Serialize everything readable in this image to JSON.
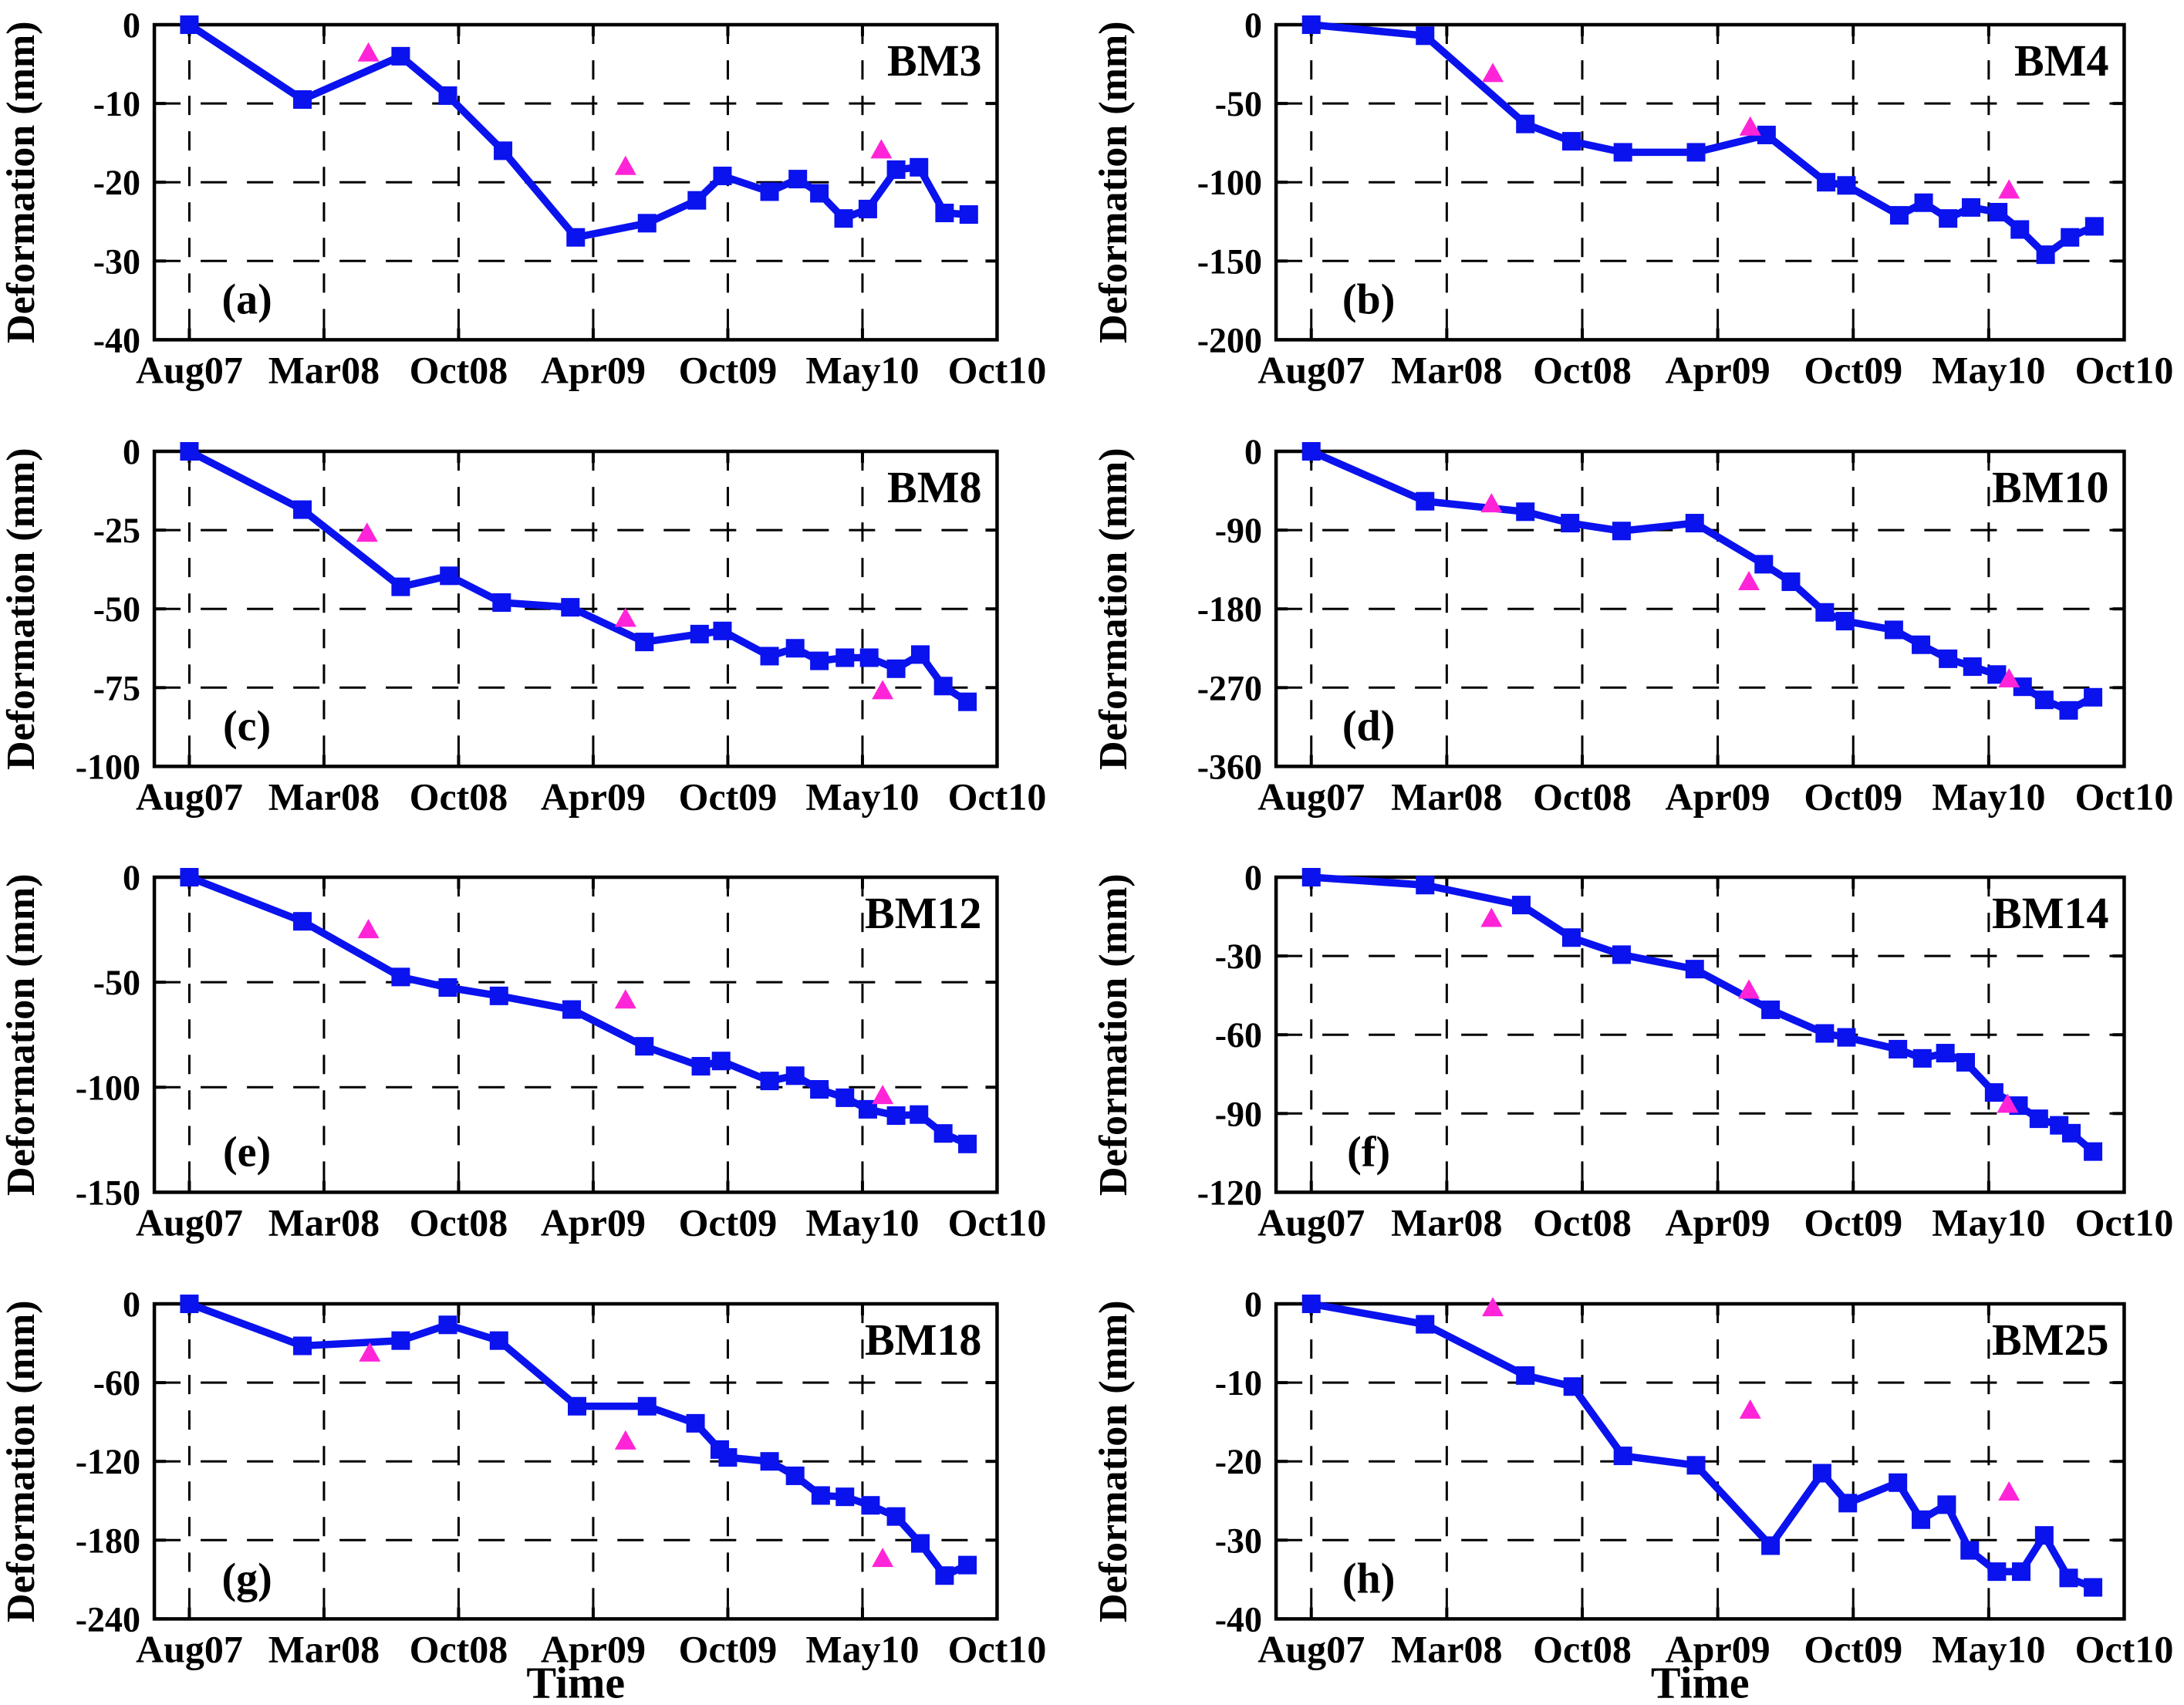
{
  "figure": {
    "y_axis_label": "Deformation (mm)",
    "x_axis_label": "Time",
    "x_tick_labels": [
      "Aug07",
      "Mar08",
      "Oct08",
      "Apr09",
      "Oct09",
      "May10",
      "Oct10"
    ],
    "x_axis_note": "x values of data points are in x-tick units: 0=Aug07, 1=Mar08, 2=Oct08, 3=Apr09, 4=Oct09, 5=May10, 6=Oct10",
    "grid": "dashed black grid at every x tick and interior y tick",
    "colors": {
      "line": "#0A12EE",
      "square_marker": "#0A12EE",
      "triangle_marker": "#FF24D8",
      "grid": "#000000",
      "text": "#000000",
      "background": "#FFFFFF"
    }
  },
  "chart_data": [
    {
      "type": "line",
      "panel_letter": "(a)",
      "station": "BM3",
      "ylim": [
        -40,
        0
      ],
      "yticks": [
        0,
        -10,
        -20,
        -30,
        -40
      ],
      "show_x_axis_label": false,
      "line_points": [
        [
          0,
          0
        ],
        [
          0.84,
          -9.5
        ],
        [
          1.57,
          -4
        ],
        [
          1.92,
          -9
        ],
        [
          2.33,
          -16
        ],
        [
          2.87,
          -27
        ],
        [
          3.4,
          -25.2
        ],
        [
          3.77,
          -22.3
        ],
        [
          3.96,
          -19.2
        ],
        [
          4.31,
          -21.2
        ],
        [
          4.52,
          -19.6
        ],
        [
          4.68,
          -21.4
        ],
        [
          4.86,
          -24.6
        ],
        [
          5.04,
          -23.4
        ],
        [
          5.25,
          -18.4
        ],
        [
          5.42,
          -18.1
        ],
        [
          5.61,
          -23.9
        ],
        [
          5.79,
          -24.1
        ]
      ],
      "triangle_points": [
        [
          1.33,
          -3.6
        ],
        [
          3.24,
          -18
        ],
        [
          5.14,
          -15.9
        ]
      ]
    },
    {
      "type": "line",
      "panel_letter": "(b)",
      "station": "BM4",
      "ylim": [
        -200,
        0
      ],
      "yticks": [
        0,
        -50,
        -100,
        -150,
        -200
      ],
      "show_x_axis_label": false,
      "line_points": [
        [
          0,
          0
        ],
        [
          0.84,
          -7
        ],
        [
          1.58,
          -63
        ],
        [
          1.92,
          -74
        ],
        [
          2.3,
          -81
        ],
        [
          2.84,
          -81
        ],
        [
          3.36,
          -70
        ],
        [
          3.8,
          -100
        ],
        [
          3.95,
          -102
        ],
        [
          4.34,
          -121
        ],
        [
          4.52,
          -113
        ],
        [
          4.7,
          -123
        ],
        [
          4.87,
          -116
        ],
        [
          5.07,
          -119
        ],
        [
          5.23,
          -130
        ],
        [
          5.42,
          -146
        ],
        [
          5.6,
          -135
        ],
        [
          5.78,
          -128
        ]
      ],
      "triangle_points": [
        [
          1.34,
          -31
        ],
        [
          3.24,
          -65
        ],
        [
          5.15,
          -105
        ]
      ]
    },
    {
      "type": "line",
      "panel_letter": "(c)",
      "station": "BM8",
      "ylim": [
        -100,
        0
      ],
      "yticks": [
        0,
        -25,
        -50,
        -75,
        -100
      ],
      "show_x_axis_label": false,
      "line_points": [
        [
          0,
          0
        ],
        [
          0.84,
          -18.5
        ],
        [
          1.57,
          -43
        ],
        [
          1.93,
          -39.5
        ],
        [
          2.32,
          -48
        ],
        [
          2.83,
          -49.5
        ],
        [
          3.38,
          -60.5
        ],
        [
          3.79,
          -58
        ],
        [
          3.96,
          -57
        ],
        [
          4.31,
          -65
        ],
        [
          4.5,
          -62.5
        ],
        [
          4.68,
          -66.5
        ],
        [
          4.87,
          -65.5
        ],
        [
          5.05,
          -65.5
        ],
        [
          5.25,
          -69
        ],
        [
          5.43,
          -64.5
        ],
        [
          5.6,
          -74.5
        ],
        [
          5.78,
          -79.5
        ]
      ],
      "triangle_points": [
        [
          1.32,
          -26
        ],
        [
          3.24,
          -53
        ],
        [
          5.15,
          -76
        ]
      ]
    },
    {
      "type": "line",
      "panel_letter": "(d)",
      "station": "BM10",
      "ylim": [
        -360,
        0
      ],
      "yticks": [
        0,
        -90,
        -180,
        -270,
        -360
      ],
      "show_x_axis_label": false,
      "line_points": [
        [
          0,
          0
        ],
        [
          0.84,
          -57
        ],
        [
          1.58,
          -69
        ],
        [
          1.91,
          -82
        ],
        [
          2.29,
          -91
        ],
        [
          2.83,
          -82
        ],
        [
          3.34,
          -129
        ],
        [
          3.54,
          -149
        ],
        [
          3.79,
          -184
        ],
        [
          3.94,
          -194
        ],
        [
          4.3,
          -204
        ],
        [
          4.5,
          -221
        ],
        [
          4.7,
          -237
        ],
        [
          4.88,
          -246
        ],
        [
          5.06,
          -255
        ],
        [
          5.25,
          -269
        ],
        [
          5.41,
          -284
        ],
        [
          5.59,
          -296
        ],
        [
          5.77,
          -281
        ]
      ],
      "triangle_points": [
        [
          1.33,
          -60
        ],
        [
          3.23,
          -149
        ],
        [
          5.15,
          -260
        ]
      ]
    },
    {
      "type": "line",
      "panel_letter": "(e)",
      "station": "BM12",
      "ylim": [
        -150,
        0
      ],
      "yticks": [
        0,
        -50,
        -100,
        -150
      ],
      "show_x_axis_label": false,
      "line_points": [
        [
          0,
          0
        ],
        [
          0.84,
          -21
        ],
        [
          1.57,
          -47.5
        ],
        [
          1.92,
          -52.5
        ],
        [
          2.3,
          -56.5
        ],
        [
          2.84,
          -63
        ],
        [
          3.38,
          -80.5
        ],
        [
          3.8,
          -90
        ],
        [
          3.95,
          -87.5
        ],
        [
          4.31,
          -97
        ],
        [
          4.5,
          -94.5
        ],
        [
          4.68,
          -101
        ],
        [
          4.87,
          -105
        ],
        [
          5.04,
          -110.5
        ],
        [
          5.25,
          -113.5
        ],
        [
          5.42,
          -113
        ],
        [
          5.6,
          -122
        ],
        [
          5.78,
          -127
        ]
      ],
      "triangle_points": [
        [
          1.33,
          -25
        ],
        [
          3.24,
          -58.5
        ],
        [
          5.15,
          -104
        ]
      ]
    },
    {
      "type": "line",
      "panel_letter": "(f)",
      "station": "BM14",
      "ylim": [
        -120,
        0
      ],
      "yticks": [
        0,
        -30,
        -60,
        -90,
        -120
      ],
      "show_x_axis_label": false,
      "line_points": [
        [
          0,
          0
        ],
        [
          0.84,
          -3
        ],
        [
          1.55,
          -10.6
        ],
        [
          1.92,
          -23
        ],
        [
          2.29,
          -29.5
        ],
        [
          2.83,
          -35
        ],
        [
          3.39,
          -50.5
        ],
        [
          3.79,
          -59.5
        ],
        [
          3.95,
          -61
        ],
        [
          4.33,
          -65.5
        ],
        [
          4.51,
          -69
        ],
        [
          4.68,
          -67
        ],
        [
          4.83,
          -70.5
        ],
        [
          5.04,
          -82
        ],
        [
          5.22,
          -87
        ],
        [
          5.37,
          -92
        ],
        [
          5.52,
          -94.5
        ],
        [
          5.61,
          -97.5
        ],
        [
          5.77,
          -104.5
        ]
      ],
      "triangle_points": [
        [
          1.33,
          -15.7
        ],
        [
          3.23,
          -43
        ],
        [
          5.14,
          -86.5
        ]
      ]
    },
    {
      "type": "line",
      "panel_letter": "(g)",
      "station": "BM18",
      "ylim": [
        -240,
        0
      ],
      "yticks": [
        0,
        -60,
        -120,
        -180,
        -240
      ],
      "show_x_axis_label": true,
      "line_points": [
        [
          0,
          0
        ],
        [
          0.84,
          -32
        ],
        [
          1.57,
          -28
        ],
        [
          1.92,
          -16
        ],
        [
          2.3,
          -28
        ],
        [
          2.88,
          -78
        ],
        [
          3.4,
          -78
        ],
        [
          3.76,
          -91
        ],
        [
          3.94,
          -111
        ],
        [
          4.0,
          -117
        ],
        [
          4.31,
          -120
        ],
        [
          4.5,
          -131
        ],
        [
          4.69,
          -146
        ],
        [
          4.87,
          -147
        ],
        [
          5.06,
          -153.5
        ],
        [
          5.25,
          -162
        ],
        [
          5.43,
          -182.5
        ],
        [
          5.61,
          -207
        ],
        [
          5.78,
          -199
        ]
      ],
      "triangle_points": [
        [
          1.34,
          -37.5
        ],
        [
          3.24,
          -104.5
        ],
        [
          5.15,
          -194
        ]
      ]
    },
    {
      "type": "line",
      "panel_letter": "(h)",
      "station": "BM25",
      "ylim": [
        -40,
        0
      ],
      "yticks": [
        0,
        -10,
        -20,
        -30,
        -40
      ],
      "show_x_axis_label": true,
      "line_points": [
        [
          0,
          0
        ],
        [
          0.84,
          -2.6
        ],
        [
          1.58,
          -9.1
        ],
        [
          1.93,
          -10.5
        ],
        [
          2.3,
          -19.3
        ],
        [
          2.84,
          -20.5
        ],
        [
          3.39,
          -30.7
        ],
        [
          3.77,
          -21.5
        ],
        [
          3.96,
          -25.3
        ],
        [
          4.33,
          -22.7
        ],
        [
          4.5,
          -27.4
        ],
        [
          4.69,
          -25.5
        ],
        [
          4.86,
          -31.3
        ],
        [
          5.06,
          -34
        ],
        [
          5.24,
          -34
        ],
        [
          5.41,
          -29.4
        ],
        [
          5.59,
          -34.8
        ],
        [
          5.77,
          -36
        ]
      ],
      "triangle_points": [
        [
          1.34,
          -0.5
        ],
        [
          3.24,
          -13.5
        ],
        [
          5.15,
          -23.9
        ]
      ]
    }
  ]
}
